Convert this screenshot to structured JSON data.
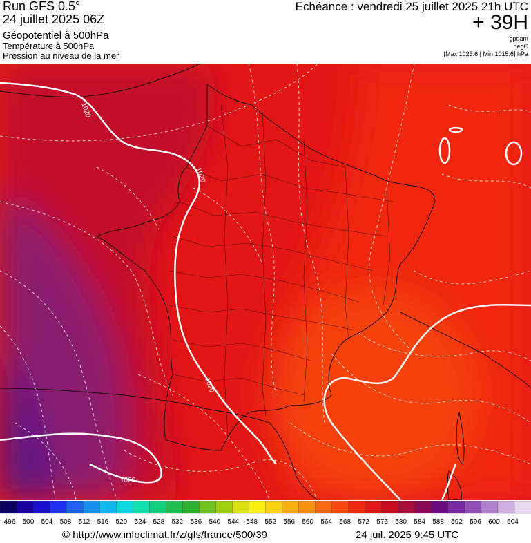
{
  "header": {
    "run": "Run GFS 0.5°",
    "date": "24 juillet 2025 06Z",
    "field1": "Géopotentiel à 500hPa",
    "field2": "Température à 500hPa",
    "field3": "Pression au niveau de la mer",
    "echeance": "Echéance : vendredi 25 juillet 2025 21h UTC",
    "lead": "+ 39H",
    "unit1": "gpdam",
    "unit2": "degC",
    "maxmin": "[Max 1023.6 | Min 1015.6] hPa"
  },
  "map": {
    "isobar_labels": [
      "1020",
      "1020",
      "1020",
      "1020"
    ],
    "colors": {
      "dark_red": "#c20d2a",
      "red": "#e31616",
      "bright_red": "#f0250f",
      "orange_red": "#f5420d",
      "purple": "#8a1a6e",
      "violet": "#5a1486"
    }
  },
  "scale": {
    "labels": [
      "496",
      "500",
      "504",
      "508",
      "512",
      "516",
      "520",
      "524",
      "528",
      "532",
      "536",
      "540",
      "544",
      "548",
      "552",
      "556",
      "560",
      "564",
      "568",
      "572",
      "576",
      "580",
      "584",
      "588",
      "592",
      "596",
      "600",
      "604"
    ],
    "colors": [
      "#0a0060",
      "#1a00a0",
      "#1a10d0",
      "#2030f0",
      "#2060f0",
      "#1890f0",
      "#10b8f0",
      "#10d8e0",
      "#10e0b0",
      "#10d080",
      "#20c050",
      "#30b030",
      "#70c020",
      "#a0d010",
      "#d8e010",
      "#f8f010",
      "#f8d010",
      "#f8b010",
      "#f89010",
      "#f86a10",
      "#f84a10",
      "#f02a10",
      "#e01818",
      "#c80d22",
      "#a80c3a",
      "#8a0a58",
      "#6a0c80",
      "#7a2aa0",
      "#9050b8",
      "#b080cc",
      "#d0b0e0",
      "#e8d8f0"
    ]
  },
  "footer": {
    "source": "© http://www.infoclimat.fr/z/gfs/france/500/39",
    "updated": "24 juil. 2025  9:45 UTC"
  }
}
